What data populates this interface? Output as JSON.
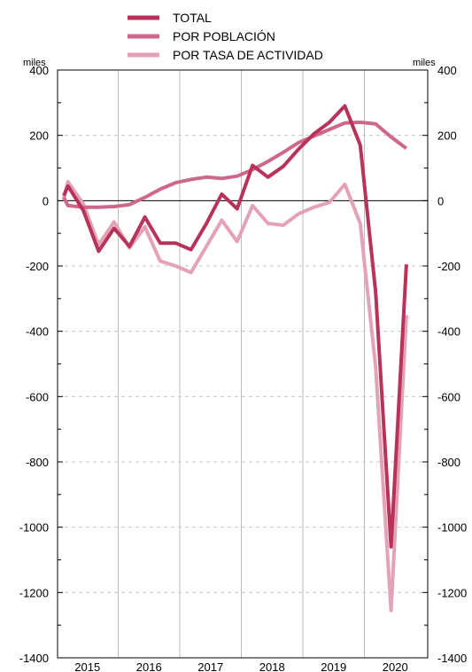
{
  "chart_data": {
    "type": "line",
    "unit_label_left": "miles",
    "unit_label_right": "miles",
    "ylim": [
      -1400,
      400
    ],
    "y_ticks": [
      400,
      200,
      0,
      -200,
      -400,
      -600,
      -800,
      -1000,
      -1200,
      -1400
    ],
    "x_years": [
      "2015",
      "2016",
      "2017",
      "2018",
      "2019",
      "2020"
    ],
    "x": [
      "2014-Q4",
      "2015-Q1",
      "2015-Q2",
      "2015-Q3",
      "2015-Q4",
      "2016-Q1",
      "2016-Q2",
      "2016-Q3",
      "2016-Q4",
      "2017-Q1",
      "2017-Q2",
      "2017-Q3",
      "2017-Q4",
      "2018-Q1",
      "2018-Q2",
      "2018-Q3",
      "2018-Q4",
      "2019-Q1",
      "2019-Q2",
      "2019-Q3",
      "2019-Q4",
      "2020-Q1",
      "2020-Q2",
      "2020-Q3"
    ],
    "grid": "vertical year separators and horizontal dashed lines",
    "legend_position": "top",
    "series": [
      {
        "name": "TOTAL",
        "color": "#b8325a",
        "values": [
          15,
          45,
          -30,
          -155,
          -85,
          -140,
          -50,
          -130,
          -130,
          -150,
          -70,
          20,
          -25,
          108,
          72,
          105,
          158,
          205,
          240,
          290,
          170,
          -280,
          -1060,
          -195
        ]
      },
      {
        "name": "POR POBLACIÓN",
        "color": "#cf6789",
        "values": [
          10,
          -15,
          -20,
          -20,
          -18,
          -12,
          10,
          35,
          55,
          65,
          72,
          68,
          75,
          95,
          120,
          148,
          178,
          198,
          218,
          238,
          240,
          235,
          195,
          160
        ]
      },
      {
        "name": "POR TASA DE ACTIVIDAD",
        "color": "#e4a2b7",
        "values": [
          5,
          58,
          -10,
          -135,
          -65,
          -145,
          -80,
          -185,
          -200,
          -220,
          -140,
          -60,
          -125,
          -15,
          -70,
          -75,
          -40,
          -20,
          -5,
          50,
          -70,
          -510,
          -1255,
          -350
        ]
      }
    ]
  }
}
